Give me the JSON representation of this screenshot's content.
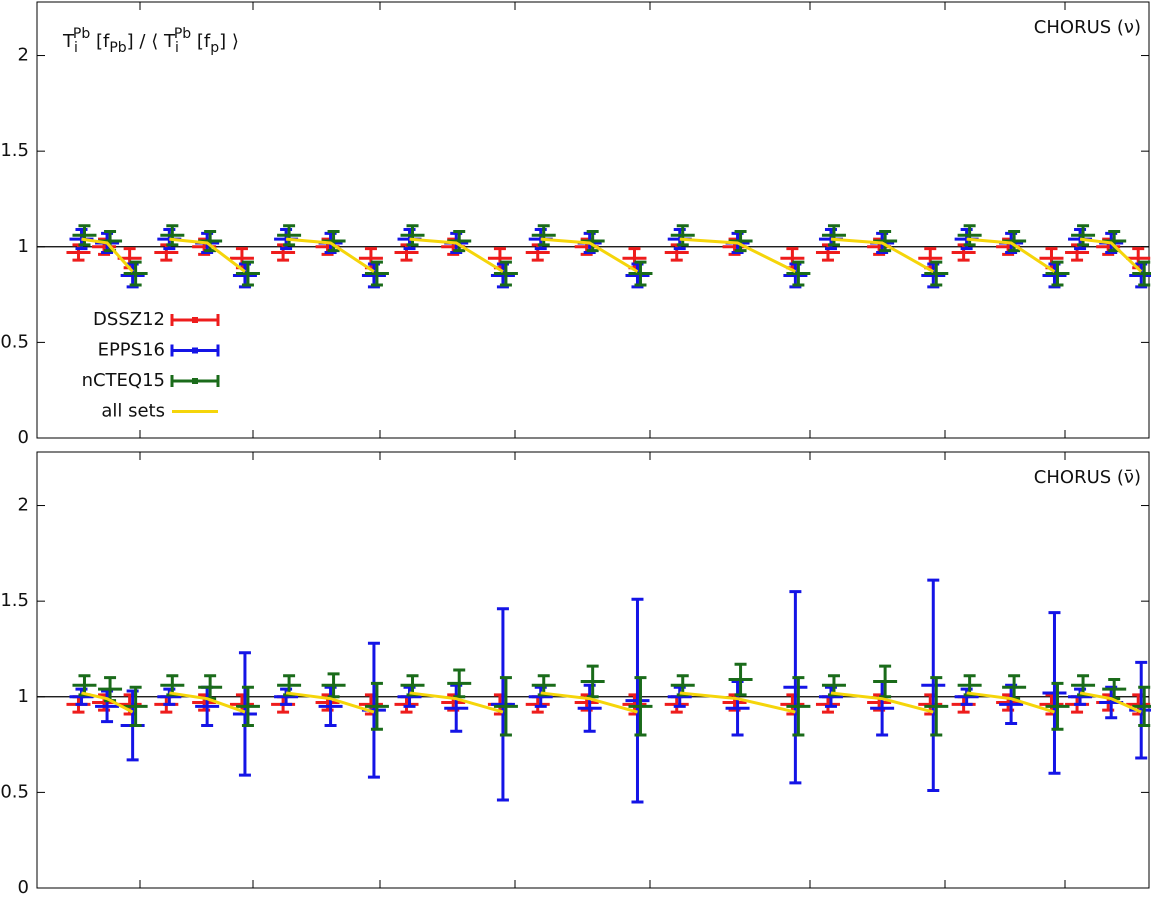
{
  "chart_data": [
    {
      "type": "errorbar",
      "ylabel": [
        {
          "text": "T",
          "pos": "base"
        },
        {
          "text": "i",
          "pos": "sub"
        },
        {
          "text": "Pb",
          "pos": "sup"
        },
        {
          "text": " [f",
          "pos": "base"
        },
        {
          "text": "Pb",
          "pos": "sub"
        },
        {
          "text": "] / ⟨ T",
          "pos": "base"
        },
        {
          "text": "i",
          "pos": "sub"
        },
        {
          "text": "Pb",
          "pos": "sup"
        },
        {
          "text": " [f",
          "pos": "base"
        },
        {
          "text": "p",
          "pos": "sub"
        },
        {
          "text": "] ⟩",
          "pos": "base"
        }
      ],
      "annotation": "CHORUS (ν)",
      "ylim": [
        0,
        2.28
      ],
      "yticks": [
        0,
        0.5,
        1,
        1.5,
        2
      ],
      "xlim": [
        0,
        100
      ],
      "reference_line": 1,
      "legend": "bottom-left",
      "x": [
        4.0,
        6.3,
        8.6,
        null,
        11.9,
        15.3,
        18.7,
        null,
        22.4,
        26.4,
        30.3,
        null,
        33.5,
        37.7,
        41.9,
        null,
        45.3,
        49.7,
        54.0,
        null,
        57.8,
        63.0,
        68.2,
        null,
        71.4,
        76.0,
        80.6,
        null,
        83.6,
        87.6,
        91.5,
        null,
        93.8,
        96.6,
        99.3
      ],
      "series": [
        {
          "name": "DSSZ12",
          "color": "#ee1c1c",
          "style": "errorbar",
          "values": [
            0.97,
            1.0,
            0.94,
            null,
            0.97,
            1.0,
            0.94,
            null,
            0.97,
            1.0,
            0.94,
            null,
            0.97,
            1.0,
            0.94,
            null,
            0.97,
            1.0,
            0.94,
            null,
            0.97,
            1.0,
            0.94,
            null,
            0.97,
            1.0,
            0.94,
            null,
            0.97,
            1.0,
            0.94,
            null,
            0.97,
            1.0,
            0.94
          ],
          "errors": [
            0.04,
            0.04,
            0.05,
            null,
            0.04,
            0.04,
            0.05,
            null,
            0.04,
            0.04,
            0.05,
            null,
            0.04,
            0.04,
            0.05,
            null,
            0.04,
            0.04,
            0.05,
            null,
            0.04,
            0.04,
            0.05,
            null,
            0.04,
            0.04,
            0.05,
            null,
            0.04,
            0.04,
            0.05,
            null,
            0.04,
            0.04,
            0.05
          ]
        },
        {
          "name": "EPPS16",
          "color": "#1414e6",
          "style": "errorbar",
          "values": [
            1.04,
            1.02,
            0.85,
            null,
            1.04,
            1.02,
            0.85,
            null,
            1.04,
            1.02,
            0.85,
            null,
            1.04,
            1.02,
            0.85,
            null,
            1.04,
            1.02,
            0.85,
            null,
            1.04,
            1.02,
            0.85,
            null,
            1.04,
            1.02,
            0.85,
            null,
            1.04,
            1.02,
            0.85,
            null,
            1.04,
            1.02,
            0.85
          ],
          "errors": [
            0.05,
            0.05,
            0.06,
            null,
            0.05,
            0.05,
            0.06,
            null,
            0.05,
            0.05,
            0.06,
            null,
            0.05,
            0.05,
            0.06,
            null,
            0.05,
            0.05,
            0.06,
            null,
            0.05,
            0.05,
            0.06,
            null,
            0.05,
            0.05,
            0.06,
            null,
            0.05,
            0.05,
            0.06,
            null,
            0.05,
            0.05,
            0.06
          ]
        },
        {
          "name": "nCTEQ15",
          "color": "#1a6b1a",
          "style": "errorbar",
          "values": [
            1.06,
            1.03,
            0.86,
            null,
            1.06,
            1.03,
            0.86,
            null,
            1.06,
            1.03,
            0.86,
            null,
            1.06,
            1.03,
            0.86,
            null,
            1.06,
            1.03,
            0.86,
            null,
            1.06,
            1.03,
            0.86,
            null,
            1.06,
            1.03,
            0.86,
            null,
            1.06,
            1.03,
            0.86,
            null,
            1.06,
            1.03,
            0.86
          ],
          "errors": [
            0.05,
            0.05,
            0.06,
            null,
            0.05,
            0.05,
            0.06,
            null,
            0.05,
            0.05,
            0.06,
            null,
            0.05,
            0.05,
            0.06,
            null,
            0.05,
            0.05,
            0.06,
            null,
            0.05,
            0.05,
            0.06,
            null,
            0.05,
            0.05,
            0.06,
            null,
            0.05,
            0.05,
            0.06,
            null,
            0.05,
            0.05,
            0.06
          ]
        },
        {
          "name": "all sets",
          "color": "#f5d50a",
          "style": "line",
          "values": [
            1.04,
            1.02,
            0.87,
            null,
            1.04,
            1.02,
            0.87,
            null,
            1.04,
            1.02,
            0.87,
            null,
            1.04,
            1.02,
            0.87,
            null,
            1.04,
            1.02,
            0.87,
            null,
            1.04,
            1.02,
            0.87,
            null,
            1.04,
            1.02,
            0.87,
            null,
            1.04,
            1.02,
            0.87,
            null,
            1.04,
            1.02,
            0.87
          ]
        }
      ]
    },
    {
      "type": "errorbar",
      "annotation": "CHORUS (ν̄)",
      "ylim": [
        0,
        2.28
      ],
      "yticks": [
        0,
        0.5,
        1,
        1.5,
        2
      ],
      "xlim": [
        0,
        100
      ],
      "reference_line": 1,
      "x": [
        4.0,
        6.3,
        8.6,
        null,
        11.9,
        15.3,
        18.7,
        null,
        22.4,
        26.4,
        30.3,
        null,
        33.5,
        37.7,
        41.9,
        null,
        45.3,
        49.7,
        54.0,
        null,
        57.8,
        63.0,
        68.2,
        null,
        71.4,
        76.0,
        80.6,
        null,
        83.6,
        87.6,
        91.5,
        null,
        93.8,
        96.6,
        99.3
      ],
      "series": [
        {
          "color": "#ee1c1c",
          "style": "errorbar",
          "values": [
            0.96,
            0.97,
            0.96,
            null,
            0.96,
            0.97,
            0.96,
            null,
            0.96,
            0.97,
            0.96,
            null,
            0.96,
            0.97,
            0.96,
            null,
            0.96,
            0.97,
            0.96,
            null,
            0.96,
            0.97,
            0.96,
            null,
            0.96,
            0.97,
            0.96,
            null,
            0.96,
            0.97,
            0.96,
            null,
            0.96,
            0.97,
            0.96
          ],
          "errors": [
            0.04,
            0.04,
            0.05,
            null,
            0.04,
            0.04,
            0.05,
            null,
            0.04,
            0.04,
            0.05,
            null,
            0.04,
            0.04,
            0.05,
            null,
            0.04,
            0.04,
            0.05,
            null,
            0.04,
            0.04,
            0.05,
            null,
            0.04,
            0.04,
            0.05,
            null,
            0.04,
            0.04,
            0.05,
            null,
            0.04,
            0.04,
            0.05
          ]
        },
        {
          "color": "#1414e6",
          "style": "errorbar",
          "values": [
            1.0,
            0.95,
            0.85,
            null,
            1.0,
            0.95,
            0.91,
            null,
            1.0,
            0.95,
            0.93,
            null,
            1.0,
            0.94,
            0.96,
            null,
            1.0,
            0.94,
            0.98,
            null,
            1.0,
            0.94,
            1.05,
            null,
            1.0,
            0.94,
            1.06,
            null,
            1.0,
            0.96,
            1.02,
            null,
            1.0,
            0.97,
            0.93
          ],
          "errors": [
            0.04,
            0.08,
            0.18,
            null,
            0.04,
            0.1,
            0.32,
            null,
            0.04,
            0.1,
            0.35,
            null,
            0.05,
            0.12,
            0.5,
            null,
            0.05,
            0.12,
            0.53,
            null,
            0.05,
            0.14,
            0.5,
            null,
            0.05,
            0.14,
            0.55,
            null,
            0.04,
            0.1,
            0.42,
            null,
            0.04,
            0.08,
            0.25
          ]
        },
        {
          "color": "#1a6b1a",
          "style": "errorbar",
          "values": [
            1.06,
            1.04,
            0.95,
            null,
            1.06,
            1.05,
            0.95,
            null,
            1.06,
            1.06,
            0.95,
            null,
            1.06,
            1.07,
            0.95,
            null,
            1.06,
            1.08,
            0.95,
            null,
            1.06,
            1.09,
            0.95,
            null,
            1.06,
            1.08,
            0.95,
            null,
            1.06,
            1.05,
            0.95,
            null,
            1.06,
            1.04,
            0.95
          ],
          "errors": [
            0.05,
            0.06,
            0.1,
            null,
            0.05,
            0.06,
            0.1,
            null,
            0.05,
            0.06,
            0.12,
            null,
            0.05,
            0.07,
            0.15,
            null,
            0.05,
            0.08,
            0.15,
            null,
            0.05,
            0.08,
            0.15,
            null,
            0.05,
            0.08,
            0.15,
            null,
            0.05,
            0.06,
            0.12,
            null,
            0.05,
            0.05,
            0.1
          ]
        },
        {
          "color": "#f5d50a",
          "style": "line",
          "values": [
            1.02,
            0.99,
            0.92,
            null,
            1.02,
            0.99,
            0.92,
            null,
            1.02,
            0.99,
            0.92,
            null,
            1.02,
            0.99,
            0.92,
            null,
            1.02,
            0.99,
            0.92,
            null,
            1.02,
            0.99,
            0.92,
            null,
            1.02,
            0.99,
            0.92,
            null,
            1.02,
            0.99,
            0.92,
            null,
            1.02,
            0.99,
            0.92
          ]
        }
      ]
    }
  ]
}
